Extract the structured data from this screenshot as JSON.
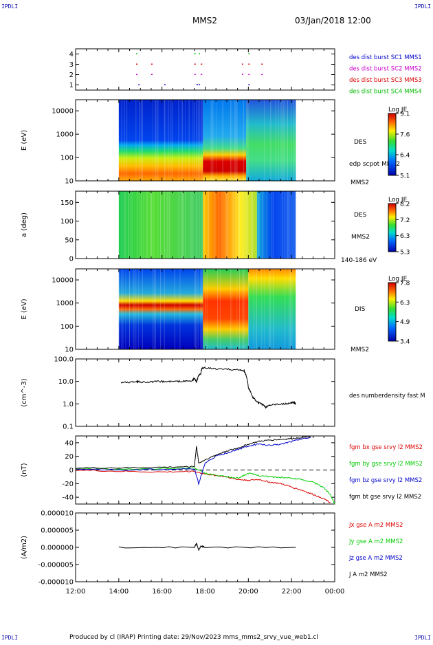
{
  "header": {
    "logo_left": "IPDLI",
    "logo_right": "IPDLI",
    "title": "MMS2",
    "date": "03/Jan/2018 12:00"
  },
  "footer": {
    "text": "Produced by cl (IRAP)   Printing date: 29/Nov/2023   mms_mms2_srvy_vue_web1.cl",
    "logo_left": "IPDLI",
    "logo_right": "IPDLI"
  },
  "time_axis": {
    "ticks": [
      "12:00",
      "14:00",
      "16:00",
      "18:00",
      "20:00",
      "22:00",
      "00:00"
    ],
    "range_hours": [
      12,
      24
    ]
  },
  "chart_data": [
    {
      "type": "scatter",
      "panel": "burst",
      "ylim": [
        0.5,
        4.5
      ],
      "y_ticks": [
        "1",
        "2",
        "3",
        "4"
      ],
      "legend": [
        {
          "label": "des dist burst SC1 MMS1",
          "color": "#0000cc"
        },
        {
          "label": "des dist burst SC2 MMS2",
          "color": "#cc00cc"
        },
        {
          "label": "des dist burst SC3 MMS3",
          "color": "#dd0000"
        },
        {
          "label": "des dist burst SC4 MMS4",
          "color": "#00bb00"
        }
      ],
      "series": [
        {
          "y": 1,
          "x": [
            14.9,
            16.1,
            17.6,
            17.7,
            20.0
          ]
        },
        {
          "y": 2,
          "x": [
            14.8,
            15.5,
            17.5,
            17.8,
            19.7,
            20.0,
            20.6
          ]
        },
        {
          "y": 3,
          "x": [
            14.8,
            15.5,
            17.5,
            17.8,
            19.7,
            20.0,
            20.6
          ]
        },
        {
          "y": 4,
          "x": [
            14.8,
            17.5,
            17.7,
            20.0
          ]
        }
      ]
    },
    {
      "type": "heatmap",
      "panel": "des_energy",
      "ylabel": "E (eV)",
      "y_ticks": [
        "10",
        "100",
        "1000",
        "10000"
      ],
      "ylim": [
        10,
        30000
      ],
      "x_range": [
        14.0,
        22.2
      ],
      "label": "DES",
      "side_labels": [
        "edp scpot MMS2",
        "MMS2"
      ],
      "colorbar": {
        "title": "Log JE",
        "ticks": [
          "9.1",
          "7.6",
          "6.4",
          "5.1"
        ],
        "min": 5.1,
        "max": 9.1
      }
    },
    {
      "type": "heatmap",
      "panel": "des_pitch",
      "ylabel": "a (deg)",
      "y_ticks": [
        "0",
        "50",
        "100",
        "150"
      ],
      "ylim": [
        0,
        180
      ],
      "x_range": [
        14.0,
        22.2
      ],
      "label": "DES",
      "side_labels": [
        "MMS2",
        "140-186 eV"
      ],
      "colorbar": {
        "title": "Log JE",
        "ticks": [
          "8.2",
          "7.2",
          "6.3",
          "5.3"
        ],
        "min": 5.3,
        "max": 8.2
      }
    },
    {
      "type": "heatmap",
      "panel": "dis_energy",
      "ylabel": "E (eV)",
      "y_ticks": [
        "10",
        "100",
        "1000",
        "10000"
      ],
      "ylim": [
        10,
        30000
      ],
      "x_range": [
        14.0,
        22.2
      ],
      "label": "DIS",
      "side_labels": [
        "MMS2"
      ],
      "colorbar": {
        "title": "Log JE",
        "ticks": [
          "7.8",
          "6.3",
          "4.9",
          "3.4"
        ],
        "min": 3.4,
        "max": 7.8
      }
    },
    {
      "type": "line",
      "panel": "density",
      "ylabel": "(cm^-3)",
      "y_ticks": [
        "0.1",
        "1.0",
        "10.0",
        "100.0"
      ],
      "ylim": [
        0.1,
        100
      ],
      "yscale": "log",
      "legend": [
        {
          "label": "des numberdensity fast M",
          "color": "#000000"
        }
      ],
      "series": [
        {
          "name": "des numberdensity fast M",
          "color": "#000000",
          "x": [
            14.1,
            14.5,
            14.8,
            15.0,
            15.4,
            15.8,
            16.2,
            16.6,
            17.0,
            17.4,
            17.5,
            17.6,
            17.7,
            17.8,
            17.85,
            18.0,
            18.5,
            19.0,
            19.5,
            19.8,
            19.9,
            20.0,
            20.2,
            20.4,
            20.6,
            20.8,
            21.0,
            21.4,
            21.8,
            22.0,
            22.1,
            22.2
          ],
          "y": [
            9.0,
            9.2,
            10.0,
            9.5,
            9.3,
            10.0,
            9.8,
            10.0,
            10.2,
            10.5,
            14.0,
            9.0,
            18.0,
            22.0,
            38.0,
            40.0,
            36.0,
            35.0,
            33.0,
            30.0,
            18.0,
            5.0,
            2.0,
            1.2,
            1.0,
            0.7,
            0.9,
            1.0,
            1.0,
            1.1,
            1.2,
            1.0
          ]
        }
      ]
    },
    {
      "type": "line",
      "panel": "fgm",
      "ylabel": "(nT)",
      "y_ticks": [
        "-40",
        "-20",
        "0",
        "20",
        "40"
      ],
      "ylim": [
        -50,
        50
      ],
      "zero_line": true,
      "legend": [
        {
          "label": "fgm bx gse srvy l2 MMS2",
          "color": "#dd0000"
        },
        {
          "label": "fgm by gse srvy l2 MMS2",
          "color": "#00cc00"
        },
        {
          "label": "fgm bz gse srvy l2 MMS2",
          "color": "#0000cc"
        },
        {
          "label": "fgm bt gse srvy l2 MMS2",
          "color": "#000000"
        }
      ],
      "series": [
        {
          "name": "fgm bx gse srvy l2 MMS2",
          "color": "#dd0000",
          "x": [
            12.0,
            14.0,
            16.0,
            17.5,
            18.0,
            18.5,
            19.0,
            19.5,
            20.0,
            20.5,
            21.0,
            21.5,
            22.0,
            22.5,
            23.0,
            23.5,
            23.8
          ],
          "y": [
            0,
            -2,
            -3,
            -2,
            -6,
            -8,
            -10,
            -14,
            -15,
            -14,
            -18,
            -20,
            -25,
            -30,
            -36,
            -42,
            -48
          ]
        },
        {
          "name": "fgm by gse srvy l2 MMS2",
          "color": "#00cc00",
          "x": [
            12.0,
            14.0,
            16.0,
            17.5,
            18.0,
            18.5,
            19.0,
            19.5,
            20.0,
            20.5,
            21.0,
            21.5,
            22.0,
            22.5,
            23.0,
            23.5,
            23.8,
            24.0
          ],
          "y": [
            2,
            1,
            2,
            3,
            -5,
            -8,
            -10,
            -12,
            -5,
            -8,
            -10,
            -11,
            -12,
            -14,
            -18,
            -26,
            -36,
            -50
          ]
        },
        {
          "name": "fgm bz gse srvy l2 MMS2",
          "color": "#0000cc",
          "x": [
            12.0,
            14.0,
            16.0,
            17.5,
            17.7,
            18.0,
            18.5,
            19.0,
            19.5,
            20.0,
            20.5,
            21.0,
            21.5,
            22.0,
            22.5,
            22.9
          ],
          "y": [
            1,
            0,
            1,
            2,
            -20,
            10,
            20,
            25,
            30,
            35,
            38,
            36,
            38,
            42,
            46,
            48
          ]
        },
        {
          "name": "fgm bt gse srvy l2 MMS2",
          "color": "#000000",
          "x": [
            12.0,
            14.0,
            16.0,
            17.5,
            17.6,
            17.7,
            18.0,
            18.5,
            19.0,
            19.5,
            20.0,
            20.5,
            21.0,
            21.5,
            22.0,
            22.5,
            22.9
          ],
          "y": [
            3,
            3,
            4,
            5,
            35,
            10,
            15,
            22,
            28,
            32,
            38,
            42,
            44,
            45,
            46,
            48,
            50
          ]
        }
      ]
    },
    {
      "type": "line",
      "panel": "current",
      "ylabel": "(A/m2)",
      "y_ticks": [
        "-0.000010",
        "-0.000005",
        "0.000000",
        "0.000005",
        "0.000010"
      ],
      "ylim": [
        -1e-05,
        1e-05
      ],
      "legend": [
        {
          "label": "Jx gse A m2 MMS2",
          "color": "#dd0000"
        },
        {
          "label": "Jy gse A m2 MMS2",
          "color": "#00cc00"
        },
        {
          "label": "Jz gse A m2 MMS2",
          "color": "#0000cc"
        },
        {
          "label": "J A m2 MMS2",
          "color": "#000000"
        }
      ],
      "series": [
        {
          "name": "J A m2 MMS2",
          "color": "#000000",
          "x": [
            14.0,
            17.5,
            17.6,
            17.7,
            17.8,
            18.0,
            22.2
          ],
          "y": [
            0,
            0,
            1.2e-06,
            -9e-07,
            4e-07,
            0,
            0
          ]
        }
      ]
    }
  ]
}
